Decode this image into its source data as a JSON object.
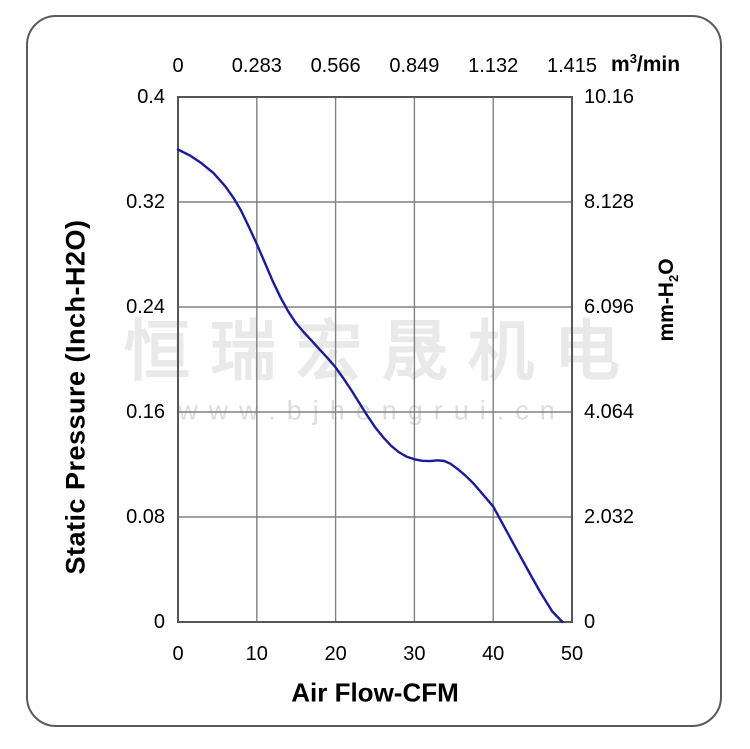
{
  "frame": {
    "border_color": "#5a5a5a"
  },
  "watermark": {
    "brand": "恒瑞宏晟机电",
    "website": "www.bjhengrui.cn",
    "brand_color": "#e9e9e9",
    "website_color": "#dcdcdc"
  },
  "chart_data": {
    "type": "line",
    "title": "",
    "grid": true,
    "grid_color": "#808080",
    "axis_color": "#565656",
    "background": "#ffffff",
    "x_range": [
      0,
      50
    ],
    "y_range": [
      0,
      0.4
    ],
    "axes": {
      "top": {
        "unit_pre": "m",
        "unit_sup": "3",
        "unit_post": "/min",
        "ticks": [
          "0",
          "0.283",
          "0.566",
          "0.849",
          "1.132",
          "1.415"
        ]
      },
      "bottom": {
        "label": "Air Flow-CFM",
        "ticks": [
          "0",
          "10",
          "20",
          "30",
          "40",
          "50"
        ],
        "tick_values": [
          0,
          10,
          20,
          30,
          40,
          50
        ]
      },
      "left": {
        "label": "Static Pressure (Inch-H2O)",
        "ticks": [
          "0.4",
          "0.32",
          "0.24",
          "0.16",
          "0.08",
          "0"
        ],
        "tick_values": [
          0.4,
          0.32,
          0.24,
          0.16,
          0.08,
          0
        ]
      },
      "right": {
        "label_pre": "mm-H",
        "label_sub": "2",
        "label_post": "O",
        "ticks": [
          "10.16",
          "8.128",
          "6.096",
          "4.064",
          "2.032",
          "0"
        ]
      }
    },
    "series": [
      {
        "name": "static_pressure_vs_airflow",
        "color": "#1b1b96",
        "points": [
          [
            0,
            0.36
          ],
          [
            1.5,
            0.3555
          ],
          [
            3,
            0.3495
          ],
          [
            4.5,
            0.342
          ],
          [
            6,
            0.332
          ],
          [
            7,
            0.3235
          ],
          [
            8,
            0.3135
          ],
          [
            9,
            0.301
          ],
          [
            10,
            0.288
          ],
          [
            11,
            0.274
          ],
          [
            12,
            0.26
          ],
          [
            13,
            0.2475
          ],
          [
            14,
            0.2365
          ],
          [
            15,
            0.2275
          ],
          [
            16,
            0.2205
          ],
          [
            17,
            0.214
          ],
          [
            18,
            0.2075
          ],
          [
            19,
            0.201
          ],
          [
            20,
            0.194
          ],
          [
            21,
            0.1855
          ],
          [
            22,
            0.1765
          ],
          [
            23,
            0.167
          ],
          [
            24,
            0.1575
          ],
          [
            25,
            0.1485
          ],
          [
            26,
            0.141
          ],
          [
            27,
            0.1345
          ],
          [
            28,
            0.1295
          ],
          [
            29,
            0.126
          ],
          [
            30,
            0.124
          ],
          [
            31,
            0.1228
          ],
          [
            32,
            0.1226
          ],
          [
            33,
            0.1232
          ],
          [
            33.8,
            0.1227
          ],
          [
            34.6,
            0.1205
          ],
          [
            35.5,
            0.1165
          ],
          [
            36.5,
            0.1115
          ],
          [
            37.5,
            0.1055
          ],
          [
            38.5,
            0.0985
          ],
          [
            40,
            0.088
          ],
          [
            41.5,
            0.0715
          ],
          [
            43,
            0.055
          ],
          [
            44.5,
            0.0385
          ],
          [
            46,
            0.0225
          ],
          [
            47.5,
            0.008
          ],
          [
            48.8,
            0
          ]
        ]
      }
    ]
  }
}
